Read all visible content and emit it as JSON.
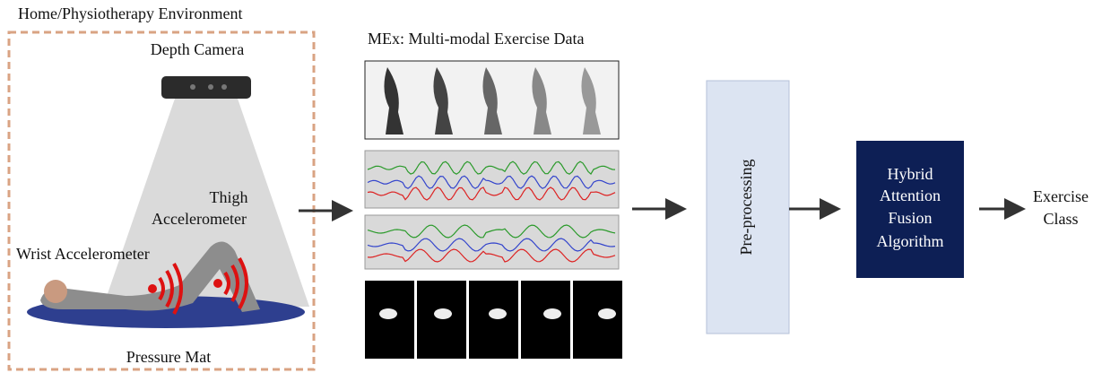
{
  "header": {
    "title": "Home/Physiotherapy Environment"
  },
  "environment": {
    "camera_label": "Depth Camera",
    "thigh_label": [
      "Thigh",
      "Accelerometer"
    ],
    "wrist_label": "Wrist Accelerometer",
    "mat_label": "Pressure Mat"
  },
  "data_panel": {
    "title": "MEx: Multi-modal Exercise Data"
  },
  "steps": [
    {
      "label": "Pre-processing"
    },
    {
      "lines": [
        "Hybrid",
        "Attention",
        "Fusion",
        "Algorithm"
      ]
    },
    {
      "lines": [
        "Exercise",
        "Class"
      ]
    }
  ]
}
